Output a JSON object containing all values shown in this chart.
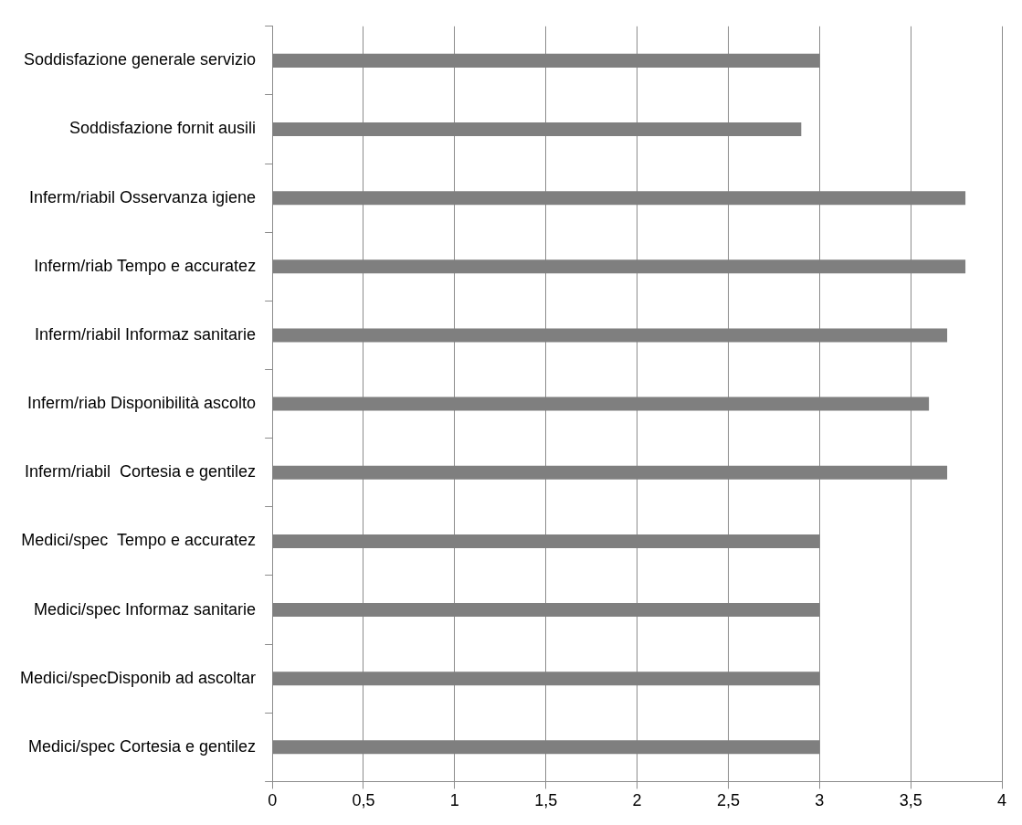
{
  "chart_data": {
    "type": "bar",
    "orientation": "horizontal",
    "categories": [
      "Soddisfazione generale servizio",
      "Soddisfazione fornit ausili",
      "Inferm/riabil Osservanza igiene",
      "Inferm/riab Tempo e accuratez",
      "Inferm/riabil Informaz sanitarie",
      "Inferm/riab Disponibilità ascolto",
      "Inferm/riabil  Cortesia e gentilez",
      "Medici/spec  Tempo e accuratez",
      "Medici/spec Informaz sanitarie",
      "Medici/specDisponib ad ascoltar",
      "Medici/spec Cortesia e gentilez"
    ],
    "values": [
      3,
      2.9,
      3.8,
      3.8,
      3.7,
      3.6,
      3.7,
      3,
      3,
      3,
      3
    ],
    "color": "#7f7f7f",
    "xlim": [
      0,
      4
    ],
    "xticks": [
      0,
      {
        "value": 0.5,
        "label": "0,5"
      },
      1,
      {
        "value": 1.5,
        "label": "1,5"
      },
      2,
      {
        "value": 2.5,
        "label": "2,5"
      },
      3,
      {
        "value": 3.5,
        "label": "3,5"
      },
      4
    ],
    "grid": "x",
    "legend": false
  }
}
